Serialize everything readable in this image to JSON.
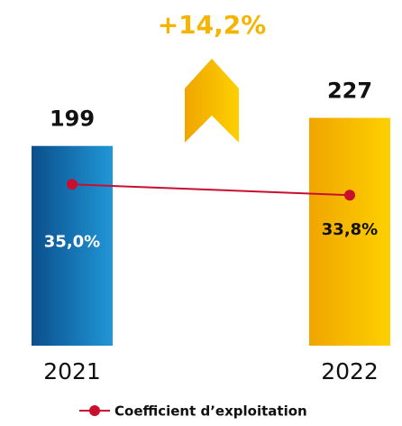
{
  "chart_data": {
    "type": "bar",
    "annotation": "+14,2%",
    "categories": [
      "2021",
      "2022"
    ],
    "ylim": [
      0,
      250
    ],
    "y2lim": [
      17,
      45
    ],
    "series": [
      {
        "name": null,
        "type": "bar",
        "colors": [
          "#0b5c9e",
          "#f5b400"
        ],
        "values": [
          199,
          227
        ]
      },
      {
        "name": "Coefficient d’exploitation",
        "type": "line",
        "axis": "y2",
        "color": "#c8102e",
        "values": [
          35.0,
          33.8
        ],
        "value_labels": [
          "35,0%",
          "33,8%"
        ]
      }
    ]
  }
}
